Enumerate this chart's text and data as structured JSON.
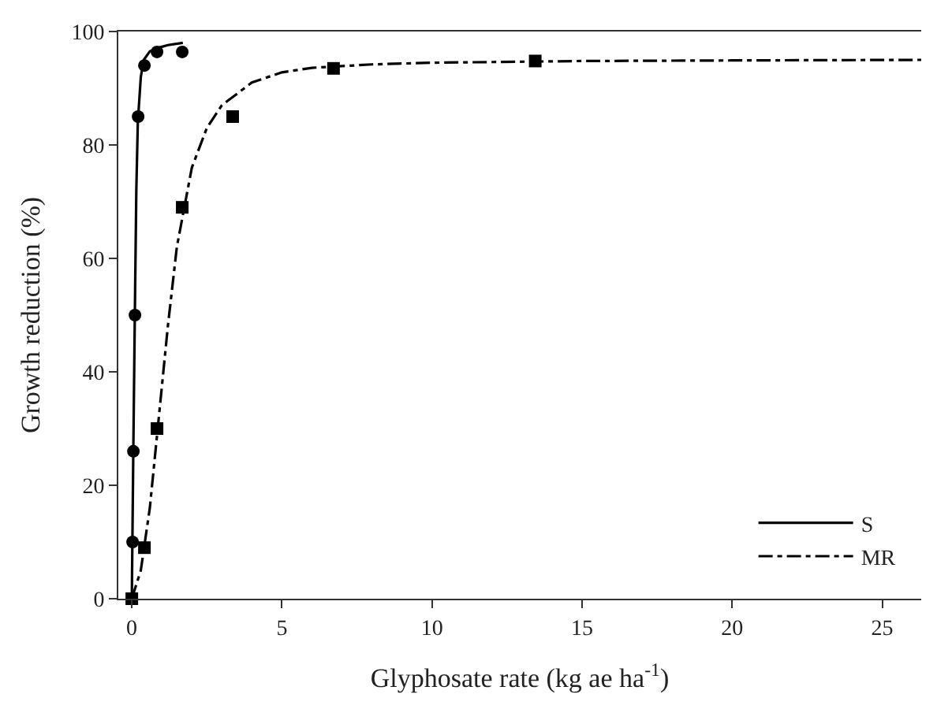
{
  "chart_data": {
    "type": "scatter",
    "xlabel": "Glyphosate rate (kg ae ha$^{-1}$)",
    "ylabel": "Growth reduction (%)",
    "xlim": [
      -0.45,
      26.3
    ],
    "ylim": [
      0,
      100
    ],
    "xticks": [
      0,
      5,
      10,
      15,
      20,
      25
    ],
    "yticks": [
      0,
      20,
      40,
      60,
      80,
      100
    ],
    "legend": "bottom right",
    "series": [
      {
        "name": "S",
        "type": "line",
        "line_style": "solid",
        "marker": "none",
        "color": "#000000",
        "x": [
          0,
          0.05,
          0.1,
          0.15,
          0.2,
          0.3,
          0.4,
          0.6,
          0.8,
          1.2,
          1.7
        ],
        "values": [
          0,
          26,
          50,
          72,
          84,
          92,
          95,
          96.5,
          97,
          97.6,
          98
        ]
      },
      {
        "name": "MR",
        "type": "line",
        "line_style": "dashdot",
        "marker": "none",
        "color": "#000000",
        "x": [
          0,
          0.3,
          0.6,
          0.9,
          1.2,
          1.5,
          2,
          2.5,
          3,
          4,
          5,
          6,
          8,
          10,
          15,
          20,
          26.3
        ],
        "values": [
          0,
          5,
          16,
          32,
          48,
          62,
          76,
          83,
          87,
          91,
          92.8,
          93.6,
          94.2,
          94.5,
          94.8,
          94.9,
          95
        ]
      },
      {
        "marker": "circle",
        "color": "#000000",
        "x": [
          0.026,
          0.053,
          0.105,
          0.21,
          0.42,
          0.84,
          1.68
        ],
        "values": [
          10,
          26,
          50,
          85,
          94,
          96.4,
          96.4
        ]
      },
      {
        "marker": "square",
        "color": "#000000",
        "x": [
          0,
          0.42,
          0.84,
          1.68,
          3.36,
          6.72,
          13.44
        ],
        "values": [
          0,
          9,
          30,
          69,
          85,
          93.5,
          94.8
        ]
      }
    ]
  }
}
